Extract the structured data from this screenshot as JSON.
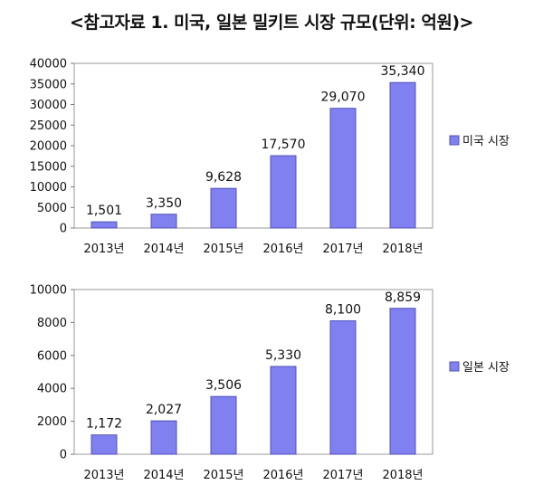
{
  "page": {
    "title": "<참고자료 1. 미국, 일본 밀키트 시장 규모(단위: 억원)>"
  },
  "chart_data": [
    {
      "type": "bar",
      "categories": [
        "2013년",
        "2014년",
        "2015년",
        "2016년",
        "2017년",
        "2018년"
      ],
      "series": [
        {
          "name": "미국 시장",
          "values": [
            1501,
            3350,
            9628,
            17570,
            29070,
            35340
          ]
        }
      ],
      "data_labels": [
        "1,501",
        "3,350",
        "9,628",
        "17,570",
        "29,070",
        "35,340"
      ],
      "y_ticks": [
        "0",
        "5000",
        "10000",
        "15000",
        "20000",
        "25000",
        "30000",
        "35000",
        "40000"
      ],
      "ylim": [
        0,
        40000
      ],
      "grid": false,
      "legend": "right",
      "bar_color": "#8080f0",
      "bar_stroke": "#5050b8"
    },
    {
      "type": "bar",
      "categories": [
        "2013년",
        "2014년",
        "2015년",
        "2016년",
        "2017년",
        "2018년"
      ],
      "series": [
        {
          "name": "일본 시장",
          "values": [
            1172,
            2027,
            3506,
            5330,
            8100,
            8859
          ]
        }
      ],
      "data_labels": [
        "1,172",
        "2,027",
        "3,506",
        "5,330",
        "8,100",
        "8,859"
      ],
      "y_ticks": [
        "0",
        "2000",
        "4000",
        "6000",
        "8000",
        "10000"
      ],
      "ylim": [
        0,
        10000
      ],
      "grid": false,
      "legend": "right",
      "bar_color": "#8080f0",
      "bar_stroke": "#5050b8"
    }
  ]
}
